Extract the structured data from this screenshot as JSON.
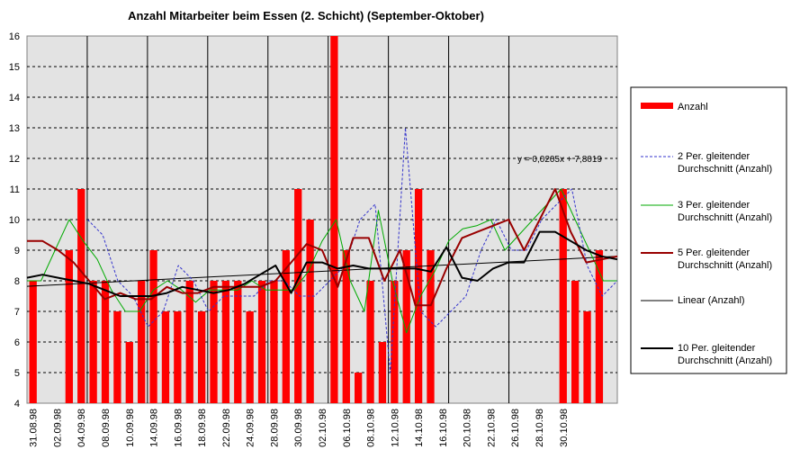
{
  "chart_data": {
    "type": "bar",
    "title": "Anzahl Mitarbeiter beim Essen (2. Schicht) (September-Oktober)",
    "xlabel": "",
    "ylabel": "",
    "ylim": [
      4,
      16
    ],
    "yticks": [
      4,
      5,
      6,
      7,
      8,
      9,
      10,
      11,
      12,
      13,
      14,
      15,
      16
    ],
    "grid": true,
    "legend_position": "right",
    "x_tick_labels": [
      "31.08.98",
      "02.09.98",
      "04.09.98",
      "08.09.98",
      "10.09.98",
      "14.09.98",
      "16.09.98",
      "18.09.98",
      "22.09.98",
      "24.09.98",
      "28.09.98",
      "30.09.98",
      "02.10.98",
      "06.10.98",
      "08.10.98",
      "12.10.98",
      "14.10.98",
      "16.10.98",
      "20.10.98",
      "22.10.98",
      "26.10.98",
      "28.10.98",
      "30.10.98"
    ],
    "week_separators_after_index": [
      5,
      10,
      15,
      20,
      25,
      30,
      35,
      40
    ],
    "trendline_label": "y = 0,0205x + 7,8019",
    "colors": {
      "plot_background": "#e3e3e3",
      "bars": "#ff0000",
      "ma2": "#3333cc",
      "ma3": "#00aa00",
      "ma5": "#990000",
      "linear": "#000000",
      "ma10": "#000000"
    },
    "series": [
      {
        "name": "Anzahl",
        "kind": "bar",
        "values": [
          8,
          null,
          null,
          9,
          11,
          8,
          8,
          7,
          6,
          8,
          9,
          7,
          7,
          8,
          7,
          8,
          8,
          8,
          7,
          8,
          8,
          9,
          11,
          10,
          null,
          16,
          9,
          5,
          8,
          6,
          8,
          9,
          11,
          9,
          null,
          null,
          null,
          null,
          null,
          null,
          null,
          null,
          null,
          null,
          11,
          8,
          7,
          9,
          null
        ]
      },
      {
        "name": "2 Per. gleitender Durchschnitt (Anzahl)",
        "kind": "dashed",
        "values": [
          null,
          null,
          null,
          null,
          10,
          9.5,
          8,
          7.5,
          6.5,
          7,
          8.5,
          8,
          7,
          7.5,
          7.5,
          7.5,
          8,
          8,
          7.5,
          7.5,
          8,
          8.5,
          10,
          10.5,
          5,
          13,
          7,
          6.5,
          7,
          7.5,
          9,
          10,
          9,
          9,
          10,
          10.5,
          11,
          8.5,
          7.5,
          8
        ]
      },
      {
        "name": "3 Per. gleitender Durchschnitt (Anzahl)",
        "kind": "line",
        "values": [
          8,
          8,
          9,
          10,
          9.3,
          8.7,
          7.7,
          7,
          7,
          7.7,
          8,
          7.7,
          7.3,
          7.7,
          7.7,
          7.7,
          8,
          7.7,
          7.7,
          7.7,
          8.3,
          9.3,
          10,
          8,
          7,
          10.3,
          8,
          6.3,
          7.5,
          8.3,
          9.3,
          9.7,
          9.8,
          10,
          9,
          9.5,
          10,
          10.5,
          11,
          10,
          9,
          8,
          8
        ]
      },
      {
        "name": "5 Per. gleitender Durchschnitt (Anzahl)",
        "kind": "line",
        "values": [
          9.3,
          9.3,
          9,
          8.6,
          8,
          7.4,
          7.6,
          7.4,
          7.4,
          7.8,
          7.6,
          7.6,
          7.8,
          7.8,
          7.8,
          7.8,
          8,
          8.6,
          9.2,
          9,
          7.8,
          9.4,
          9.4,
          8,
          9,
          7.2,
          7.2,
          8.4,
          9.4,
          9.6,
          9.8,
          10,
          9,
          10,
          11,
          9.6,
          8.6,
          8.7,
          8.8
        ]
      },
      {
        "name": "Linear (Anzahl)",
        "kind": "trend",
        "values": [
          7.82,
          8.8
        ]
      },
      {
        "name": "10 Per. gleitender Durchschnitt (Anzahl)",
        "kind": "line",
        "values": [
          8.1,
          8.2,
          8.1,
          8,
          7.9,
          7.7,
          7.5,
          7.5,
          7.5,
          7.6,
          7.8,
          7.7,
          7.6,
          7.7,
          7.9,
          8.2,
          8.5,
          7.6,
          8.6,
          8.6,
          8.4,
          8.5,
          8.4,
          8.4,
          8.4,
          8.4,
          8.3,
          9.1,
          8.1,
          8,
          8.4,
          8.6,
          8.6,
          9.6,
          9.6,
          9.3,
          9,
          8.8,
          8.7
        ]
      }
    ]
  }
}
